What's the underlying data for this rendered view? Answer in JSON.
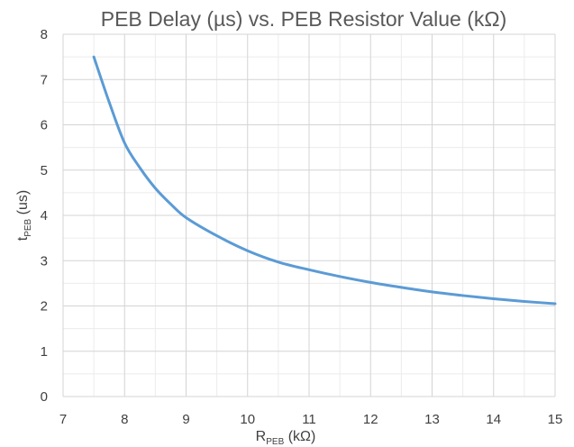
{
  "chart_data": {
    "type": "line",
    "title": "PEB Delay (µs) vs. PEB Resistor Value (kΩ)",
    "xlabel": {
      "main": "R",
      "sub": "PEB",
      "suffix": " (kΩ)"
    },
    "ylabel": {
      "main": "t",
      "sub": "PEB",
      "suffix": " (us)"
    },
    "xlim": [
      7,
      15
    ],
    "ylim": [
      0,
      8
    ],
    "xticks": [
      7,
      8,
      9,
      10,
      11,
      12,
      13,
      14,
      15
    ],
    "yticks": [
      0,
      1,
      2,
      3,
      4,
      5,
      6,
      7,
      8
    ],
    "grid": {
      "major": true,
      "minor": true
    },
    "legend": "none",
    "series": [
      {
        "color": "#5b9bd5",
        "x": [
          7.5,
          7.75,
          8.0,
          8.25,
          8.5,
          8.75,
          9.0,
          9.5,
          10.0,
          10.5,
          11.0,
          11.5,
          12.0,
          12.5,
          13.0,
          13.5,
          14.0,
          14.5,
          15.0
        ],
        "y": [
          7.5,
          6.5,
          5.6,
          5.05,
          4.6,
          4.25,
          3.95,
          3.55,
          3.22,
          2.97,
          2.8,
          2.65,
          2.52,
          2.41,
          2.31,
          2.23,
          2.16,
          2.1,
          2.05
        ]
      }
    ]
  }
}
